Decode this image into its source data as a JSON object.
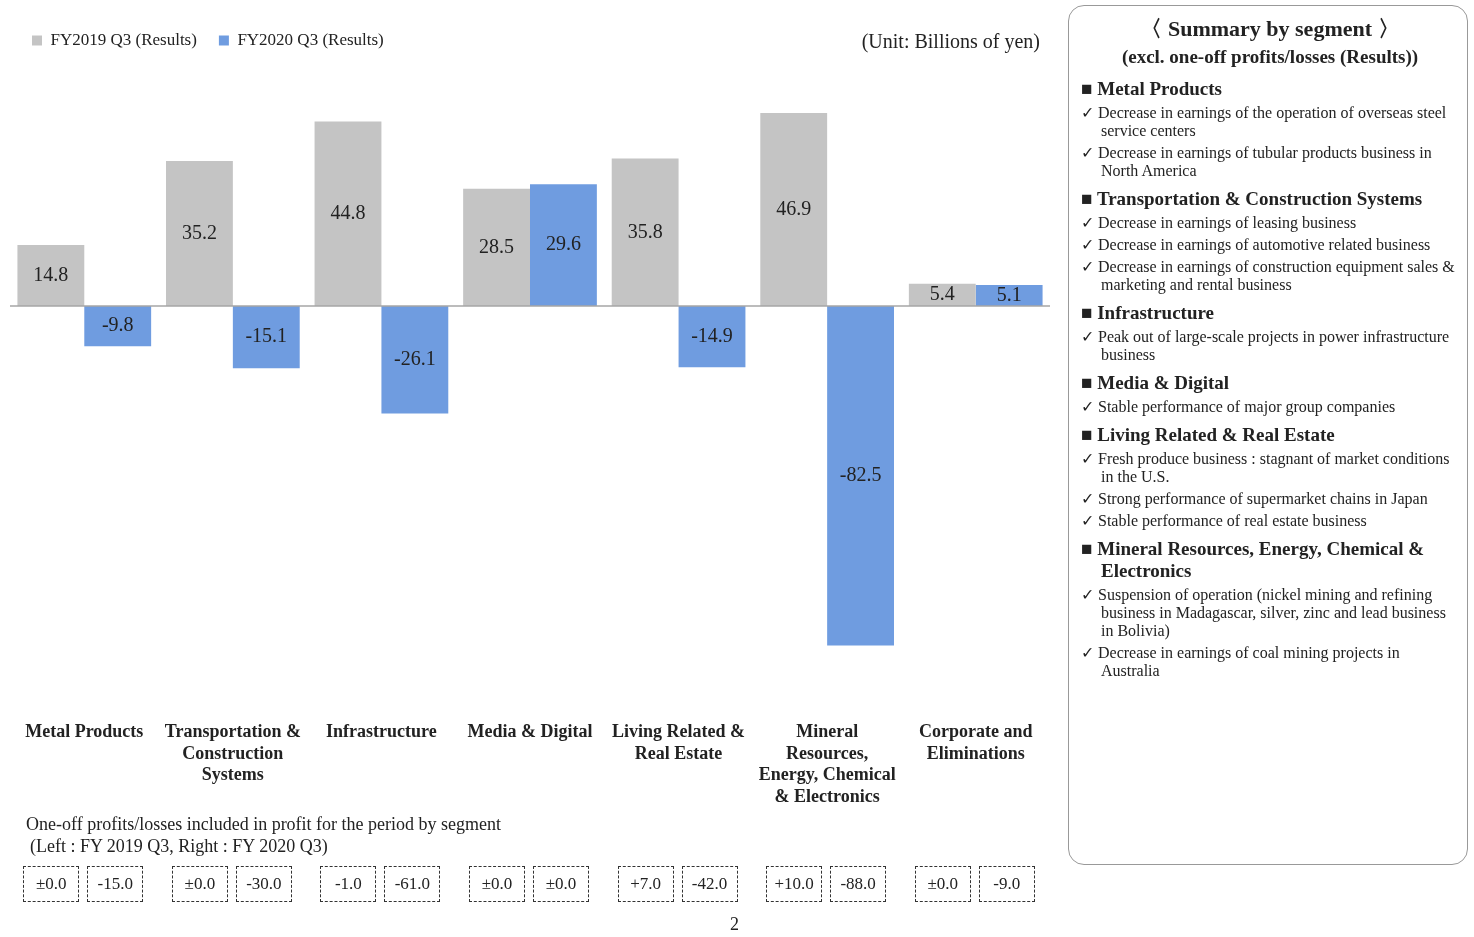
{
  "chart_data": [
    {
      "type": "bar",
      "categories": [
        "Metal Products",
        "Transportation & Construction Systems",
        "Infrastructure",
        "Media & Digital",
        "Living Related & Real Estate",
        "Mineral Resources, Energy, Chemical & Electronics",
        "Corporate and Eliminations"
      ],
      "series": [
        {
          "name": "FY2019 Q3 (Results)",
          "color": "#c4c4c4",
          "values": [
            14.8,
            35.2,
            44.8,
            28.5,
            35.8,
            46.9,
            5.4
          ]
        },
        {
          "name": "FY2020 Q3 (Results)",
          "color": "#6f9ce0",
          "values": [
            -9.8,
            -15.1,
            -26.1,
            29.6,
            -14.9,
            -82.5,
            5.1
          ]
        }
      ],
      "tick_labels": "x",
      "ref_lines": [
        {
          "axis": "y",
          "value": 0,
          "color": "#a6a6a6"
        }
      ],
      "grid": false,
      "legend": "top left",
      "data_labels": true,
      "annotations": [
        "(Unit: Billions of yen)",
        "One-off  profits/losses included in profit for the period by segment",
        "(Left : FY 2019 Q3, Right : FY 2020 Q3)",
        "±0.0",
        "-15.0",
        "±0.0",
        "-30.0",
        "-1.0",
        "-61.0",
        "±0.0",
        "±0.0",
        "+7.0",
        "-42.0",
        "+10.0",
        "-88.0",
        "±0.0",
        "-9.0",
        "2"
      ]
    },
    {
      "type": "other",
      "title": "〈 Summary by segment 〉",
      "subtitle": "(excl. one-off profits/losses (Results))",
      "annotations": [
        "■ Metal Products",
        "✓ Decrease in earnings of the operation of overseas steel service centers",
        "✓ Decrease in earnings of tubular products business in North America",
        "■ Transportation & Construction Systems",
        "✓ Decrease in earnings of leasing business",
        "✓ Decrease in earnings of automotive related business",
        "✓ Decrease in earnings of construction equipment sales & marketing and rental business",
        "■ Infrastructure",
        "✓ Peak out of large-scale projects in power infrastructure business",
        "■ Media & Digital",
        "✓ Stable performance of major group companies",
        "■ Living Related & Real Estate",
        "✓ Fresh produce business : stagnant of market conditions in the U.S.",
        "✓ Strong performance of supermarket chains in Japan",
        "✓ Stable performance of real estate business",
        "■ Mineral Resources, Energy, Chemical & Electronics",
        "✓ Suspension of operation (nickel mining and refining business in Madagascar, silver, zinc and lead business in Bolivia)",
        "✓ Decrease in earnings of coal mining projects in Australia"
      ]
    }
  ]
}
